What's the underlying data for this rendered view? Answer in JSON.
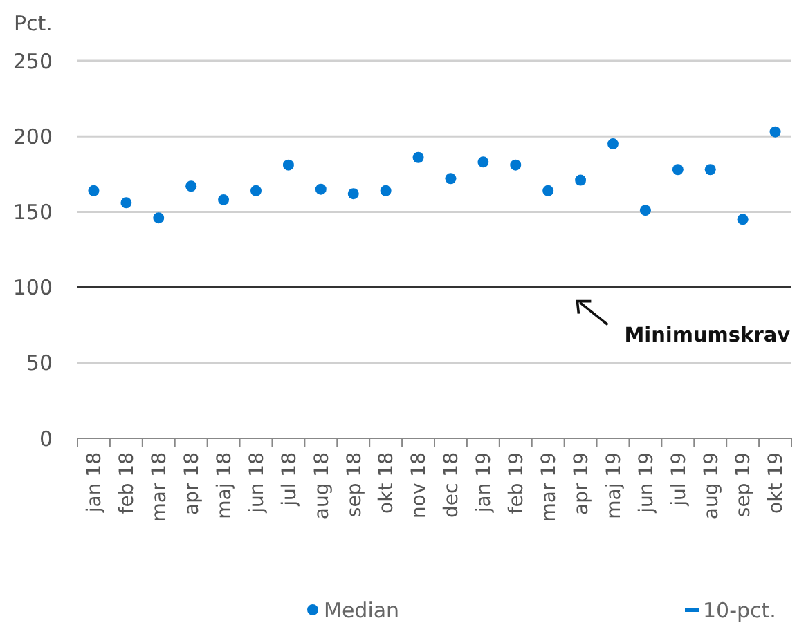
{
  "chart_data": {
    "type": "scatter",
    "ylabel": "Pct.",
    "categories": [
      "jan 18",
      "feb 18",
      "mar 18",
      "apr 18",
      "maj 18",
      "jun 18",
      "jul 18",
      "aug 18",
      "sep 18",
      "okt 18",
      "nov 18",
      "dec 18",
      "jan 19",
      "feb 19",
      "mar 19",
      "apr 19",
      "maj 19",
      "jun 19",
      "jul 19",
      "aug 19",
      "sep 19",
      "okt 19"
    ],
    "series": [
      {
        "name": "Median",
        "color": "#0078d2",
        "marker": "circle",
        "values": [
          164,
          156,
          146,
          167,
          158,
          164,
          181,
          165,
          162,
          164,
          186,
          172,
          183,
          181,
          164,
          171,
          195,
          151,
          178,
          178,
          145,
          203
        ]
      },
      {
        "name": "10-pct.",
        "color": "#0078d2",
        "marker": "dash",
        "values": [
          null,
          null,
          null,
          null,
          null,
          null,
          null,
          null,
          null,
          null,
          null,
          null,
          null,
          null,
          null,
          null,
          null,
          null,
          null,
          null,
          null,
          null
        ]
      }
    ],
    "ylim": [
      0,
      250
    ],
    "yticks": [
      0,
      50,
      100,
      150,
      200,
      250
    ],
    "grid": "y",
    "legend": "bottom",
    "ref_lines": [
      {
        "axis": "y",
        "value": 100,
        "label": "Minimumskrav",
        "color": "#333333"
      }
    ]
  }
}
